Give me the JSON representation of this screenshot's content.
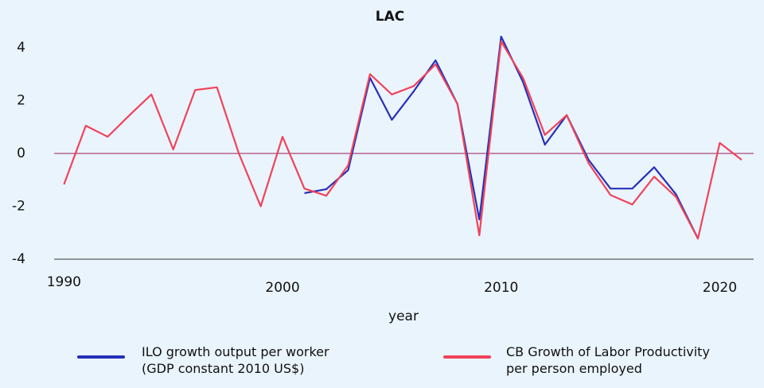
{
  "chart_data": {
    "type": "line",
    "title": "LAC",
    "x_label": "year",
    "x": [
      1990,
      1991,
      1992,
      1993,
      1994,
      1995,
      1996,
      1997,
      1998,
      1999,
      2000,
      2001,
      2002,
      2003,
      2004,
      2005,
      2006,
      2007,
      2008,
      2009,
      2010,
      2011,
      2012,
      2013,
      2014,
      2015,
      2016,
      2017,
      2018,
      2019,
      2020,
      2021
    ],
    "series": [
      {
        "name": "ILO growth output per worker\n(GDP constant 2010 US$)",
        "color": "#2630b8",
        "values": [
          null,
          null,
          null,
          null,
          null,
          null,
          null,
          null,
          null,
          null,
          null,
          -1.5,
          -1.35,
          -0.63,
          2.86,
          1.27,
          2.35,
          3.52,
          1.87,
          -2.5,
          4.42,
          2.7,
          0.33,
          1.45,
          -0.24,
          -1.33,
          -1.33,
          -0.52,
          -1.55,
          -3.22,
          null,
          null
        ]
      },
      {
        "name": "CB Growth of Labor Productivity\nper person employed",
        "color": "#f0435a",
        "values": [
          -1.17,
          1.05,
          0.63,
          1.45,
          2.23,
          0.15,
          2.4,
          2.5,
          0.0,
          -2.0,
          0.63,
          -1.33,
          -1.6,
          -0.45,
          3.0,
          2.23,
          2.55,
          3.37,
          1.87,
          -3.1,
          4.24,
          2.86,
          0.7,
          1.45,
          -0.37,
          -1.57,
          -1.93,
          -0.88,
          -1.65,
          -3.22,
          0.4,
          -0.24
        ]
      }
    ],
    "xlim": [
      1989.55,
      2021.55
    ],
    "xticks": [
      1990,
      2000,
      2010,
      2020
    ],
    "ylim": [
      -4,
      4.6
    ],
    "yticks": [
      -4,
      -2,
      0,
      2,
      4
    ],
    "zero_line_color": "#9b1b5a"
  }
}
